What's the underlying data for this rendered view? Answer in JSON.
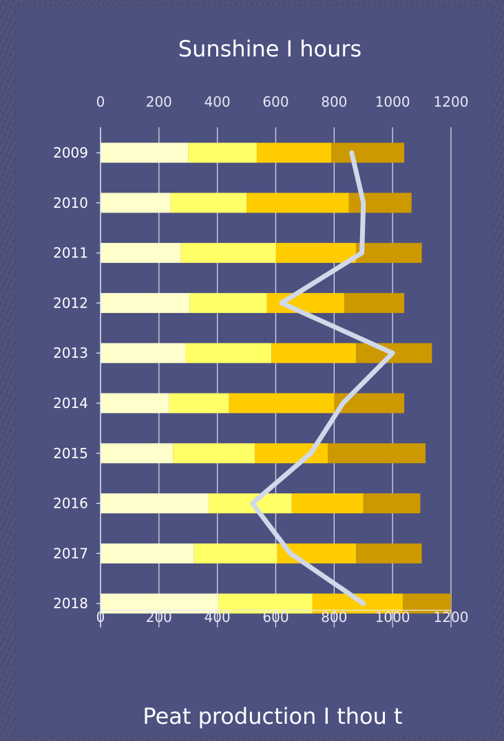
{
  "chart_data": {
    "type": "bar",
    "orientation": "horizontal",
    "stacked": true,
    "title": "Sunshine  I  hours",
    "xlabel": "Peat production  I  thou t",
    "categories": [
      "2009",
      "2010",
      "2011",
      "2012",
      "2013",
      "2014",
      "2015",
      "2016",
      "2017",
      "2018"
    ],
    "xlim": [
      0,
      1200
    ],
    "ticks": [
      0,
      200,
      400,
      600,
      800,
      1000,
      1200
    ],
    "grid": true,
    "series": [
      {
        "color": "#ffffcc",
        "values": [
          300,
          240,
          275,
          305,
          290,
          235,
          248,
          370,
          320,
          405
        ]
      },
      {
        "color": "#ffff66",
        "values": [
          235,
          260,
          325,
          265,
          295,
          205,
          280,
          285,
          285,
          320
        ]
      },
      {
        "color": "#ffcc00",
        "values": [
          255,
          350,
          275,
          265,
          290,
          360,
          250,
          245,
          270,
          310
        ]
      },
      {
        "color": "#cc9900",
        "values": [
          250,
          215,
          225,
          205,
          260,
          240,
          335,
          195,
          225,
          165
        ]
      }
    ],
    "line": {
      "color": "#d0d8ea",
      "values": [
        860,
        900,
        895,
        620,
        1000,
        830,
        720,
        520,
        650,
        900
      ]
    }
  }
}
